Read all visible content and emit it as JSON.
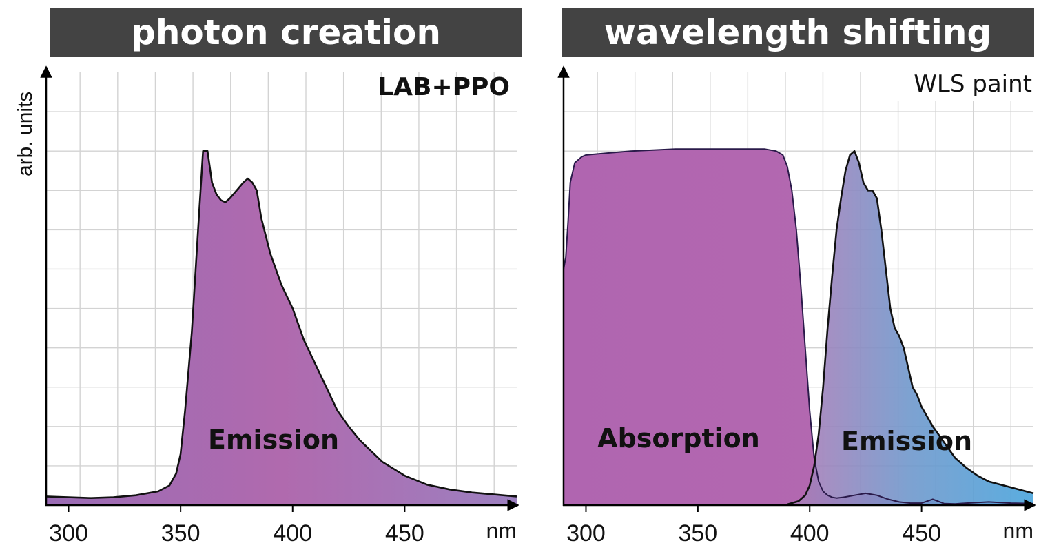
{
  "panels": [
    {
      "title": "photon creation",
      "label": "LAB+PPO",
      "ylabel": "arb. units",
      "xunit": "nm",
      "xticks": [
        300,
        350,
        400,
        450
      ],
      "curves": [
        {
          "name": "Emission",
          "colors": [
            "#9a6cb5",
            "#b06aae",
            "#9c80c0"
          ]
        }
      ]
    },
    {
      "title": "wavelength shifting",
      "label": "WLS paint",
      "xunit": "nm",
      "xticks": [
        300,
        350,
        400,
        450
      ],
      "curves": [
        {
          "name": "Absorption",
          "colors": [
            "#b065b0",
            "#b56ab0"
          ]
        },
        {
          "name": "Emission",
          "colors": [
            "#b07ab5",
            "#6f98cc",
            "#48a4dc"
          ]
        }
      ]
    }
  ],
  "chart_data": [
    {
      "type": "area",
      "title": "photon creation",
      "xlabel": "nm",
      "ylabel": "arb. units",
      "xlim": [
        290,
        500
      ],
      "ylim": [
        0,
        1.1
      ],
      "grid": true,
      "annotation": "LAB+PPO",
      "series": [
        {
          "name": "Emission",
          "x": [
            290,
            300,
            310,
            320,
            330,
            340,
            345,
            348,
            350,
            352,
            355,
            358,
            360,
            362,
            364,
            366,
            368,
            370,
            372,
            375,
            378,
            380,
            382,
            384,
            386,
            390,
            395,
            400,
            405,
            410,
            415,
            420,
            425,
            430,
            440,
            450,
            460,
            470,
            480,
            490,
            500
          ],
          "y": [
            0.022,
            0.02,
            0.018,
            0.02,
            0.025,
            0.035,
            0.05,
            0.08,
            0.13,
            0.24,
            0.44,
            0.72,
            0.9,
            0.9,
            0.82,
            0.79,
            0.775,
            0.77,
            0.78,
            0.8,
            0.82,
            0.83,
            0.82,
            0.8,
            0.73,
            0.64,
            0.56,
            0.5,
            0.42,
            0.36,
            0.3,
            0.24,
            0.2,
            0.165,
            0.11,
            0.075,
            0.052,
            0.04,
            0.032,
            0.027,
            0.022
          ]
        }
      ]
    },
    {
      "type": "area",
      "title": "wavelength shifting",
      "xlabel": "nm",
      "xlim": [
        290,
        500
      ],
      "ylim": [
        0,
        1.1
      ],
      "grid": true,
      "annotation": "WLS paint",
      "series": [
        {
          "name": "Absorption",
          "x": [
            290,
            291,
            292,
            293,
            295,
            298,
            300,
            320,
            340,
            360,
            370,
            380,
            385,
            388,
            390,
            392,
            394,
            396,
            398,
            400,
            402,
            404,
            406,
            408,
            410,
            412,
            415,
            420,
            425,
            430,
            435,
            440,
            445,
            450,
            455,
            460,
            465,
            470,
            480,
            490,
            500
          ],
          "y": [
            0.6,
            0.63,
            0.72,
            0.82,
            0.87,
            0.885,
            0.89,
            0.9,
            0.905,
            0.905,
            0.905,
            0.905,
            0.9,
            0.89,
            0.86,
            0.8,
            0.7,
            0.56,
            0.4,
            0.24,
            0.12,
            0.06,
            0.035,
            0.025,
            0.02,
            0.018,
            0.02,
            0.025,
            0.03,
            0.025,
            0.015,
            0.008,
            0.005,
            0.005,
            0.015,
            0.004,
            0.003,
            0.005,
            0.008,
            0.005,
            0.004
          ]
        },
        {
          "name": "Emission",
          "x": [
            390,
            395,
            398,
            400,
            402,
            404,
            406,
            408,
            410,
            412,
            414,
            416,
            418,
            420,
            422,
            424,
            426,
            428,
            430,
            432,
            434,
            436,
            438,
            440,
            442,
            444,
            446,
            448,
            450,
            455,
            460,
            465,
            470,
            475,
            480,
            490,
            500
          ],
          "y": [
            0.002,
            0.01,
            0.025,
            0.05,
            0.1,
            0.18,
            0.3,
            0.45,
            0.58,
            0.7,
            0.78,
            0.85,
            0.89,
            0.9,
            0.87,
            0.82,
            0.8,
            0.8,
            0.78,
            0.7,
            0.6,
            0.5,
            0.45,
            0.43,
            0.4,
            0.35,
            0.3,
            0.28,
            0.25,
            0.2,
            0.16,
            0.12,
            0.095,
            0.075,
            0.06,
            0.045,
            0.03
          ]
        }
      ]
    }
  ]
}
